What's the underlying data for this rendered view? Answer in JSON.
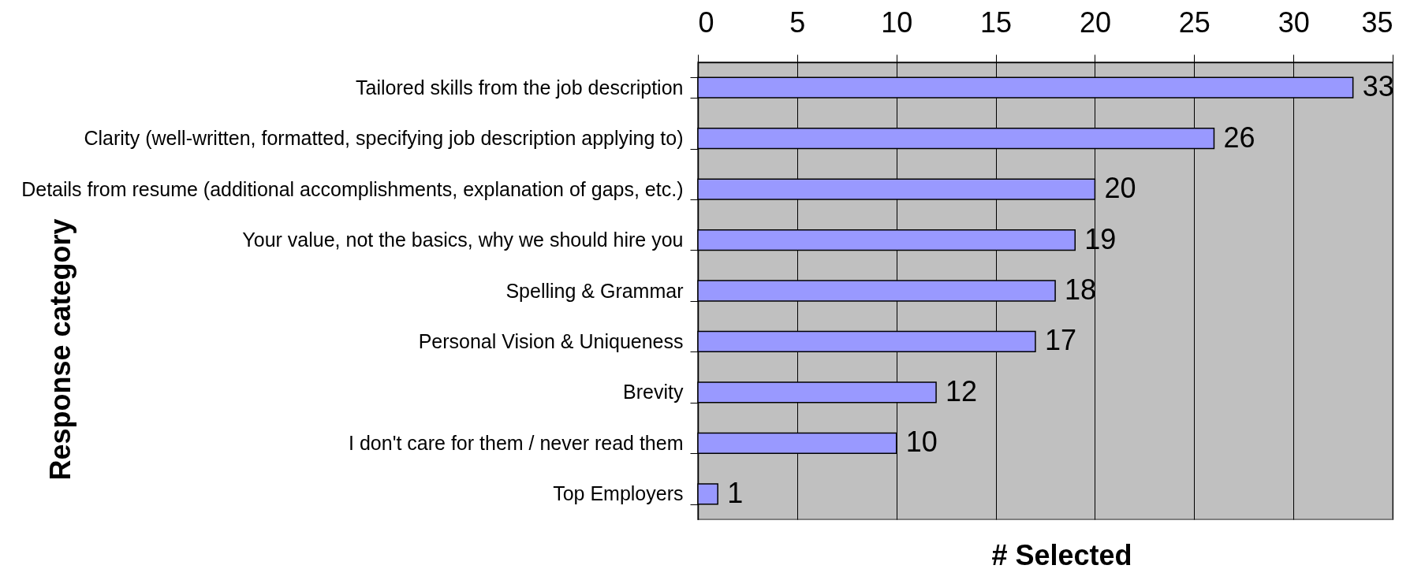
{
  "chart_data": {
    "type": "bar",
    "orientation": "horizontal",
    "xlabel": "# Selected",
    "ylabel": "Response category",
    "categories": [
      "Tailored skills from the job description",
      "Clarity (well-written, formatted, specifying job description applying to)",
      "Details from resume (additional accomplishments, explanation of gaps, etc.)",
      "Your value, not the basics, why we should hire you",
      "Spelling & Grammar",
      "Personal Vision & Uniqueness",
      "Brevity",
      "I don't care for them / never read them",
      "Top Employers"
    ],
    "values": [
      33,
      26,
      20,
      19,
      18,
      17,
      12,
      10,
      1
    ],
    "color": "#9999ff",
    "xlim": [
      0,
      35
    ],
    "xticks": [
      0,
      5,
      10,
      15,
      20,
      25,
      30,
      35
    ],
    "grid": "x",
    "data_labels": true
  }
}
